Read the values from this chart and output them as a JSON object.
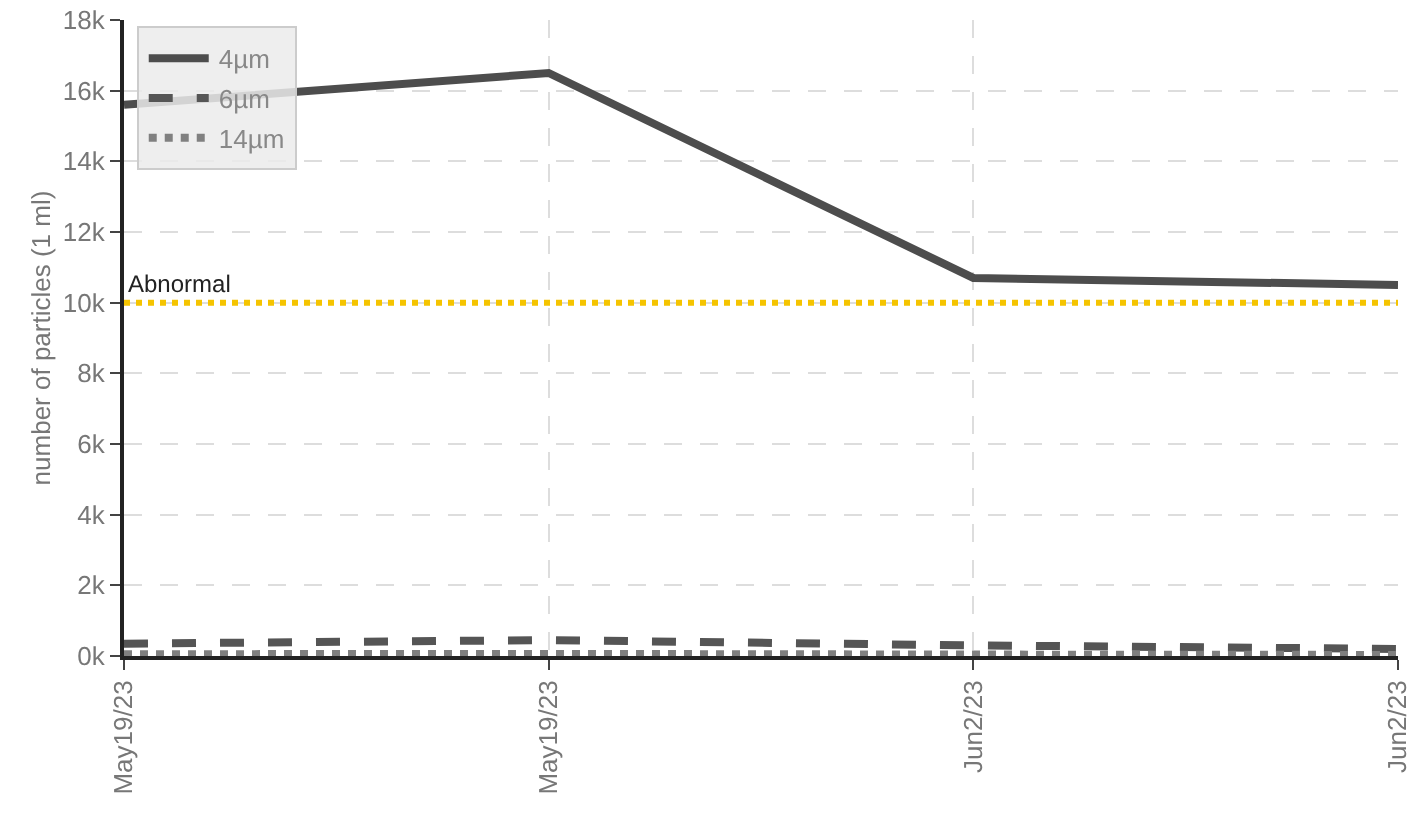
{
  "chart_data": {
    "type": "line",
    "ylabel": "number of particles (1 ml)",
    "categories": [
      "May19/23",
      "May19/23",
      "Jun2/23",
      "Jun2/23"
    ],
    "series": [
      {
        "name": "4µm",
        "color": "#4d4d4d",
        "values": [
          15600,
          16500,
          10700,
          10500
        ],
        "line_style": "solid"
      },
      {
        "name": "6µm",
        "color": "#555555",
        "values": [
          350,
          450,
          300,
          200
        ],
        "line_style": "dashed"
      },
      {
        "name": "14µm",
        "color": "#808080",
        "values": [
          50,
          60,
          40,
          30
        ],
        "line_style": "dotted"
      }
    ],
    "ylim": [
      0,
      18000
    ],
    "yticks": [
      {
        "value": 0,
        "label": "0k"
      },
      {
        "value": 2000,
        "label": "2k"
      },
      {
        "value": 4000,
        "label": "4k"
      },
      {
        "value": 6000,
        "label": "6k"
      },
      {
        "value": 8000,
        "label": "8k"
      },
      {
        "value": 10000,
        "label": "10k"
      },
      {
        "value": 12000,
        "label": "12k"
      },
      {
        "value": 14000,
        "label": "14k"
      },
      {
        "value": 16000,
        "label": "16k"
      },
      {
        "value": 18000,
        "label": "18k"
      }
    ],
    "ref_lines": [
      {
        "axis": "y",
        "value": 10000,
        "label": "Abnormal",
        "color": "#f5c400",
        "line_style": "dotted"
      }
    ],
    "grid": true,
    "legend": "top left",
    "marker": "none"
  }
}
